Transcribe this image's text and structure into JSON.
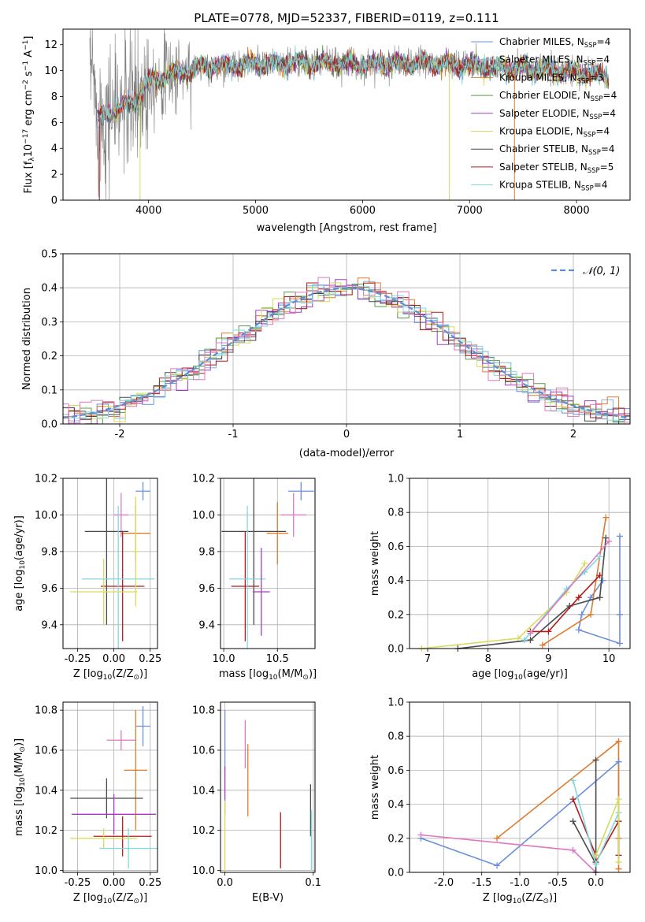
{
  "colors": {
    "chabrier_miles": "#6a8fdb",
    "salpeter_miles": "#7ab8d8",
    "kroupa_miles": "#e07b2e",
    "chabrier_elodie": "#5a9a4a",
    "salpeter_elodie": "#a23bc4",
    "kroupa_elodie": "#d6dc5a",
    "chabrier_stelib": "#4a4a4a",
    "salpeter_stelib": "#b01c1c",
    "kroupa_stelib": "#80d8dc",
    "pink": "#e078c0",
    "spectrum_gray": "#808080",
    "normal_dashed": "#5b8fd6"
  },
  "chart_data": [
    {
      "id": "spectrum",
      "type": "line",
      "title": "PLATE=0778, MJD=52337, FIBERID=0119, z=0.111",
      "xlabel": "wavelength [Angstrom, rest frame]",
      "ylabel": "Flux [fλ10⁻¹⁷ erg cm⁻² s⁻¹ A⁻¹]",
      "xlim": [
        3200,
        8500
      ],
      "ylim": [
        0,
        13.2
      ],
      "xticks": [
        4000,
        5000,
        6000,
        7000,
        8000
      ],
      "yticks": [
        0,
        2,
        4,
        6,
        8,
        10,
        12
      ],
      "legend_position": "right",
      "legend": [
        {
          "label": "Chabrier MILES, N",
          "sub": "SSP",
          "tail": "=4",
          "color_key": "chabrier_miles"
        },
        {
          "label": "Salpeter MILES, N",
          "sub": "SSP",
          "tail": "=4",
          "color_key": "salpeter_miles"
        },
        {
          "label": "Kroupa MILES, N",
          "sub": "SSP",
          "tail": "=3",
          "color_key": "kroupa_miles"
        },
        {
          "label": "Chabrier ELODIE, N",
          "sub": "SSP",
          "tail": "=4",
          "color_key": "chabrier_elodie"
        },
        {
          "label": "Salpeter ELODIE, N",
          "sub": "SSP",
          "tail": "=4",
          "color_key": "salpeter_elodie"
        },
        {
          "label": "Kroupa ELODIE, N",
          "sub": "SSP",
          "tail": "=4",
          "color_key": "kroupa_elodie"
        },
        {
          "label": "Chabrier STELIB, N",
          "sub": "SSP",
          "tail": "=4",
          "color_key": "chabrier_stelib"
        },
        {
          "label": "Salpeter STELIB, N",
          "sub": "SSP",
          "tail": "=5",
          "color_key": "salpeter_stelib"
        },
        {
          "label": "Kroupa STELIB, N",
          "sub": "SSP",
          "tail": "=4",
          "color_key": "kroupa_stelib"
        }
      ],
      "continuum": [
        [
          3500,
          6.2
        ],
        [
          3700,
          7.0
        ],
        [
          3900,
          7.8
        ],
        [
          4000,
          9.2
        ],
        [
          4200,
          9.7
        ],
        [
          4500,
          10.3
        ],
        [
          5000,
          10.5
        ],
        [
          5500,
          10.6
        ],
        [
          6000,
          10.5
        ],
        [
          6500,
          10.6
        ],
        [
          7000,
          10.4
        ],
        [
          7500,
          10.1
        ],
        [
          8000,
          9.9
        ],
        [
          8300,
          9.5
        ]
      ],
      "data_range": [
        3450,
        8300
      ]
    },
    {
      "id": "residuals",
      "type": "line",
      "xlabel": "(data-model)/error",
      "ylabel": "Normed distribution",
      "xlim": [
        -2.5,
        2.5
      ],
      "ylim": [
        0,
        0.5
      ],
      "xticks": [
        -2,
        -1,
        0,
        1,
        2
      ],
      "yticks": [
        0.0,
        0.1,
        0.2,
        0.3,
        0.4,
        0.5
      ],
      "legend": [
        {
          "label": "𝒩(0, 1)",
          "color_key": "normal_dashed",
          "style": "dashed"
        }
      ],
      "legend_position": "top-right",
      "bin_width": 0.1
    },
    {
      "id": "age_vs_Z",
      "type": "scatter",
      "xlabel": "Z [log₁₀(Z/Z⊙)]",
      "ylabel": "age  [log₁₀(age/yr)]",
      "xlim": [
        -0.35,
        0.3
      ],
      "ylim": [
        9.27,
        10.2
      ],
      "xticks": [
        -0.25,
        0.0,
        0.25
      ],
      "yticks": [
        9.4,
        9.6,
        9.8,
        10.0,
        10.2
      ],
      "points": [
        {
          "x": 0.2,
          "y": 10.13,
          "xerr": 0.05,
          "yerr": 0.05,
          "color_key": "chabrier_miles"
        },
        {
          "x": 0.05,
          "y": 10.0,
          "xerr": 0.05,
          "yerr": 0.12,
          "color_key": "pink"
        },
        {
          "x": 0.15,
          "y": 9.9,
          "xerr": 0.1,
          "yerr": 0.15,
          "color_key": "kroupa_miles"
        },
        {
          "x": -0.05,
          "y": 9.91,
          "xerr": 0.15,
          "yerr": 0.51,
          "color_key": "chabrier_stelib"
        },
        {
          "x": 0.06,
          "y": 9.61,
          "xerr": 0.15,
          "yerr": 0.3,
          "color_key": "salpeter_stelib"
        },
        {
          "x": 0.03,
          "y": 9.65,
          "xerr": 0.25,
          "yerr": 0.4,
          "color_key": "kroupa_stelib"
        },
        {
          "x": -0.07,
          "y": 9.58,
          "xerr": 0.23,
          "yerr": 0.18,
          "color_key": "kroupa_elodie"
        },
        {
          "x": 0.15,
          "y": 9.8,
          "xerr": 0.02,
          "yerr": 0.3,
          "color_key": "kroupa_elodie"
        }
      ]
    },
    {
      "id": "age_vs_mass",
      "type": "scatter",
      "xlabel": "mass [log₁₀(M/M⊙)]",
      "xlim": [
        9.97,
        10.85
      ],
      "ylim": [
        9.27,
        10.2
      ],
      "xticks": [
        10.0,
        10.5
      ],
      "yticks": [
        9.4,
        9.6,
        9.8,
        10.0,
        10.2
      ],
      "points": [
        {
          "x": 10.72,
          "y": 10.13,
          "xerr": 0.12,
          "yerr": 0.05,
          "color_key": "chabrier_miles"
        },
        {
          "x": 10.65,
          "y": 10.0,
          "xerr": 0.12,
          "yerr": 0.12,
          "color_key": "pink"
        },
        {
          "x": 10.5,
          "y": 9.9,
          "xerr": 0.1,
          "yerr": 0.17,
          "color_key": "kroupa_miles"
        },
        {
          "x": 10.28,
          "y": 9.91,
          "xerr": 0.3,
          "yerr": 0.51,
          "color_key": "chabrier_stelib"
        },
        {
          "x": 10.2,
          "y": 9.61,
          "xerr": 0.13,
          "yerr": 0.3,
          "color_key": "salpeter_stelib"
        },
        {
          "x": 10.22,
          "y": 9.65,
          "xerr": 0.17,
          "yerr": 0.4,
          "color_key": "kroupa_stelib"
        },
        {
          "x": 10.35,
          "y": 9.58,
          "xerr": 0.08,
          "yerr": 0.24,
          "color_key": "salpeter_elodie"
        }
      ]
    },
    {
      "id": "mass_weight_vs_age",
      "type": "line",
      "xlabel": "age  [log₁₀(age/yr)]",
      "ylabel": "mass weight",
      "xlim": [
        6.7,
        10.35
      ],
      "ylim": [
        0,
        1.0
      ],
      "xticks": [
        7,
        8,
        9,
        10
      ],
      "yticks": [
        0.0,
        0.2,
        0.4,
        0.6,
        0.8,
        1.0
      ],
      "series": [
        {
          "color_key": "chabrier_miles",
          "x": [
            10.18,
            10.18,
            10.18,
            9.5,
            9.55,
            9.7,
            9.9
          ],
          "y": [
            0.66,
            0.2,
            0.03,
            0.11,
            0.2,
            0.3,
            0.4
          ]
        },
        {
          "color_key": "kroupa_miles",
          "x": [
            8.9,
            9.7,
            9.95
          ],
          "y": [
            0.02,
            0.2,
            0.77
          ]
        },
        {
          "color_key": "kroupa_elodie",
          "x": [
            6.9,
            8.5,
            9.3,
            9.6
          ],
          "y": [
            0.0,
            0.06,
            0.33,
            0.5
          ]
        },
        {
          "color_key": "chabrier_stelib",
          "x": [
            7.5,
            8.7,
            9.35,
            9.85,
            9.95
          ],
          "y": [
            0.0,
            0.05,
            0.25,
            0.3,
            0.65
          ]
        },
        {
          "color_key": "salpeter_stelib",
          "x": [
            8.7,
            9.0,
            9.5,
            9.85
          ],
          "y": [
            0.1,
            0.1,
            0.3,
            0.43
          ]
        },
        {
          "color_key": "kroupa_stelib",
          "x": [
            8.6,
            9.3,
            9.6,
            9.85
          ],
          "y": [
            0.05,
            0.35,
            0.45,
            0.54
          ]
        },
        {
          "color_key": "pink",
          "x": [
            8.7,
            10.0
          ],
          "y": [
            0.09,
            0.63
          ]
        }
      ]
    },
    {
      "id": "mass_vs_Z",
      "type": "scatter",
      "xlabel": "Z [log₁₀(Z/Z⊙)]",
      "ylabel": "mass [log₁₀(M/M⊙)]",
      "xlim": [
        -0.35,
        0.3
      ],
      "ylim": [
        9.99,
        10.84
      ],
      "xticks": [
        -0.25,
        0.0,
        0.25
      ],
      "yticks": [
        10.0,
        10.2,
        10.4,
        10.6,
        10.8
      ],
      "points": [
        {
          "x": 0.2,
          "y": 10.72,
          "xerr": 0.05,
          "yerr": 0.1,
          "color_key": "chabrier_miles"
        },
        {
          "x": 0.05,
          "y": 10.65,
          "xerr": 0.1,
          "yerr": 0.05,
          "color_key": "pink"
        },
        {
          "x": 0.15,
          "y": 10.5,
          "xerr": 0.08,
          "yerr": 0.3,
          "color_key": "kroupa_miles"
        },
        {
          "x": -0.05,
          "y": 10.36,
          "xerr": 0.25,
          "yerr": 0.1,
          "color_key": "chabrier_stelib"
        },
        {
          "x": 0.0,
          "y": 10.28,
          "xerr": 0.29,
          "yerr": 0.1,
          "color_key": "salpeter_elodie"
        },
        {
          "x": 0.06,
          "y": 10.17,
          "xerr": 0.2,
          "yerr": 0.1,
          "color_key": "salpeter_stelib"
        },
        {
          "x": 0.1,
          "y": 10.11,
          "xerr": 0.2,
          "yerr": 0.1,
          "color_key": "kroupa_stelib"
        },
        {
          "x": -0.07,
          "y": 10.16,
          "xerr": 0.23,
          "yerr": 0.05,
          "color_key": "kroupa_elodie"
        }
      ]
    },
    {
      "id": "mass_vs_ebv",
      "type": "scatter",
      "xlabel": "E(B-V)",
      "xlim": [
        -0.005,
        0.102
      ],
      "ylim": [
        9.99,
        10.84
      ],
      "xticks": [
        0.0,
        0.1
      ],
      "yticks": [
        10.0,
        10.2,
        10.4,
        10.6,
        10.8
      ],
      "points": [
        {
          "x": 0.0,
          "y": 10.65,
          "yerr": 0.15,
          "color_key": "chabrier_miles"
        },
        {
          "x": 0.0,
          "y": 10.4,
          "yerr": 0.12,
          "color_key": "salpeter_elodie"
        },
        {
          "x": 0.0,
          "y": 10.15,
          "yerr": 0.2,
          "color_key": "kroupa_elodie"
        },
        {
          "x": 0.023,
          "y": 10.63,
          "yerr": 0.12,
          "color_key": "pink"
        },
        {
          "x": 0.026,
          "y": 10.45,
          "yerr": 0.18,
          "color_key": "kroupa_miles"
        },
        {
          "x": 0.063,
          "y": 10.15,
          "yerr": 0.14,
          "color_key": "salpeter_stelib"
        },
        {
          "x": 0.097,
          "y": 10.3,
          "yerr": 0.13,
          "color_key": "chabrier_stelib"
        },
        {
          "x": 0.098,
          "y": 10.15,
          "yerr": 0.15,
          "color_key": "kroupa_stelib"
        }
      ]
    },
    {
      "id": "mass_weight_vs_Z",
      "type": "line",
      "xlabel": "Z [log₁₀(Z/Z⊙)]",
      "ylabel": "mass weight",
      "xlim": [
        -2.45,
        0.45
      ],
      "ylim": [
        0,
        1.0
      ],
      "xticks": [
        -2.0,
        -1.5,
        -1.0,
        -0.5,
        0.0
      ],
      "yticks": [
        0.0,
        0.2,
        0.4,
        0.6,
        0.8,
        1.0
      ],
      "series": [
        {
          "color_key": "chabrier_miles",
          "x": [
            -2.3,
            -1.3,
            0.3,
            0.3
          ],
          "y": [
            0.2,
            0.04,
            0.65,
            0.1
          ]
        },
        {
          "color_key": "kroupa_miles",
          "x": [
            -1.3,
            0.3,
            0.3,
            0.3
          ],
          "y": [
            0.2,
            0.77,
            0.2,
            0.02
          ]
        },
        {
          "color_key": "pink",
          "x": [
            -2.3,
            -0.3,
            0.0
          ],
          "y": [
            0.22,
            0.13,
            0.0
          ]
        },
        {
          "color_key": "chabrier_stelib",
          "x": [
            -0.3,
            0.0,
            0.0,
            0.0
          ],
          "y": [
            0.3,
            0.05,
            0.66,
            0.0
          ]
        },
        {
          "color_key": "salpeter_stelib",
          "x": [
            -0.3,
            0.0,
            0.0,
            0.3,
            0.3
          ],
          "y": [
            0.43,
            0.1,
            0.06,
            0.3,
            0.1
          ]
        },
        {
          "color_key": "kroupa_stelib",
          "x": [
            -0.3,
            0.0,
            0.3
          ],
          "y": [
            0.54,
            0.05,
            0.35
          ]
        },
        {
          "color_key": "kroupa_elodie",
          "x": [
            0.0,
            0.3,
            0.3
          ],
          "y": [
            0.1,
            0.43,
            0.06
          ]
        },
        {
          "color_key": "chabrier_miles",
          "x": [
            0.3
          ],
          "y": [
            0.65
          ]
        }
      ]
    }
  ]
}
